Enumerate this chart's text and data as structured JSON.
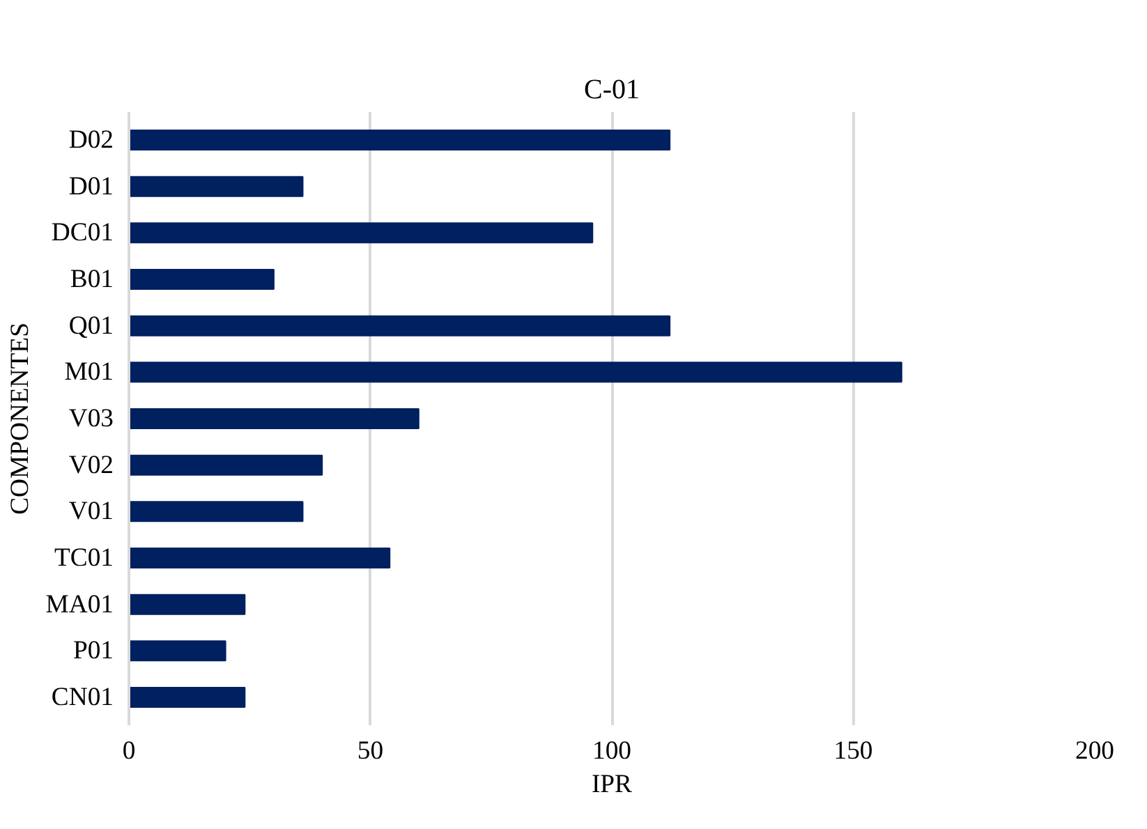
{
  "chart_data": {
    "type": "bar",
    "orientation": "horizontal",
    "title": "C-01",
    "xlabel": "IPR",
    "ylabel": "COMPONENTES",
    "categories": [
      "D02",
      "D01",
      "DC01",
      "B01",
      "Q01",
      "M01",
      "V03",
      "V02",
      "V01",
      "TC01",
      "MA01",
      "P01",
      "CN01"
    ],
    "values": [
      112,
      36,
      96,
      30,
      112,
      160,
      60,
      40,
      36,
      54,
      24,
      20,
      24
    ],
    "color": "#002060",
    "xlim": [
      0,
      200
    ],
    "xticks": [
      0,
      50,
      100,
      150,
      200
    ],
    "grid": "x"
  }
}
